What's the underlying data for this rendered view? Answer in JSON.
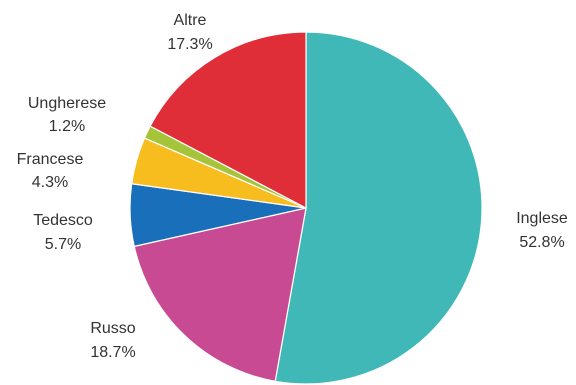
{
  "chart_data": {
    "type": "pie",
    "title": "",
    "start_angle_deg": 0,
    "direction": "clockwise",
    "slices": [
      {
        "label": "Inglese",
        "value": 52.8,
        "value_text": "52.8%",
        "color": "#41b8b8"
      },
      {
        "label": "Russo",
        "value": 18.7,
        "value_text": "18.7%",
        "color": "#c84a92"
      },
      {
        "label": "Tedesco",
        "value": 5.7,
        "value_text": "5.7%",
        "color": "#1a6fba"
      },
      {
        "label": "Francese",
        "value": 4.3,
        "value_text": "4.3%",
        "color": "#f7bd1e"
      },
      {
        "label": "Ungherese",
        "value": 1.2,
        "value_text": "1.2%",
        "color": "#a6c43a"
      },
      {
        "label": "Altre",
        "value": 17.3,
        "value_text": "17.3%",
        "color": "#df2e38"
      }
    ]
  }
}
